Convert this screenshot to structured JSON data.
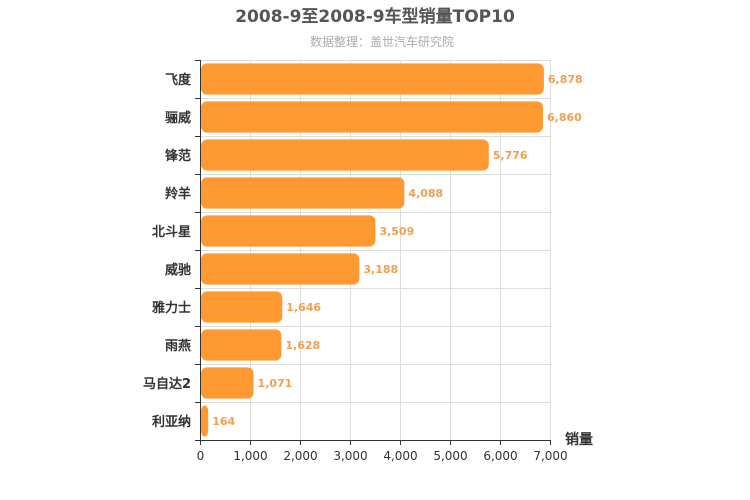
{
  "chart_data": {
    "type": "bar",
    "orientation": "horizontal",
    "title": "2008-9至2008-9车型销量TOP10",
    "subtitle": "数据整理：盖世汽车研究院",
    "xlabel": "销量",
    "ylabel": "",
    "categories": [
      "飞度",
      "骊威",
      "锋范",
      "羚羊",
      "北斗星",
      "威驰",
      "雅力士",
      "雨燕",
      "马自达2",
      "利亚纳"
    ],
    "values": [
      6878,
      6860,
      5776,
      4088,
      3509,
      3188,
      1646,
      1628,
      1071,
      164
    ],
    "value_labels": [
      "6,878",
      "6,860",
      "5,776",
      "4,088",
      "3,509",
      "3,188",
      "1,646",
      "1,628",
      "1,071",
      "164"
    ],
    "xlim": [
      0,
      7000
    ],
    "xticks": [
      0,
      1000,
      2000,
      3000,
      4000,
      5000,
      6000,
      7000
    ],
    "xtick_labels": [
      "0",
      "1,000",
      "2,000",
      "3,000",
      "4,000",
      "5,000",
      "6,000",
      "7,000"
    ],
    "grid": true,
    "colors": {
      "bar": "#ff9a33",
      "value_label": "#f0a050",
      "grid": "#dddddd"
    }
  }
}
